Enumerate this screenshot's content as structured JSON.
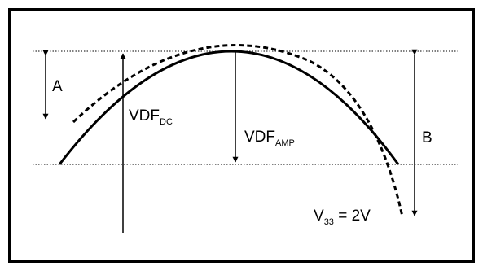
{
  "labels": {
    "a": "A",
    "b": "B",
    "vdf_dc": {
      "main": "VDF",
      "sub": "DC"
    },
    "vdf_amp": {
      "main": "VDF",
      "sub": "AMP"
    },
    "v33": {
      "main": "V",
      "sub": "33",
      "suffix": " = 2V"
    }
  },
  "colors": {
    "line": "#000000",
    "background": "#ffffff"
  }
}
